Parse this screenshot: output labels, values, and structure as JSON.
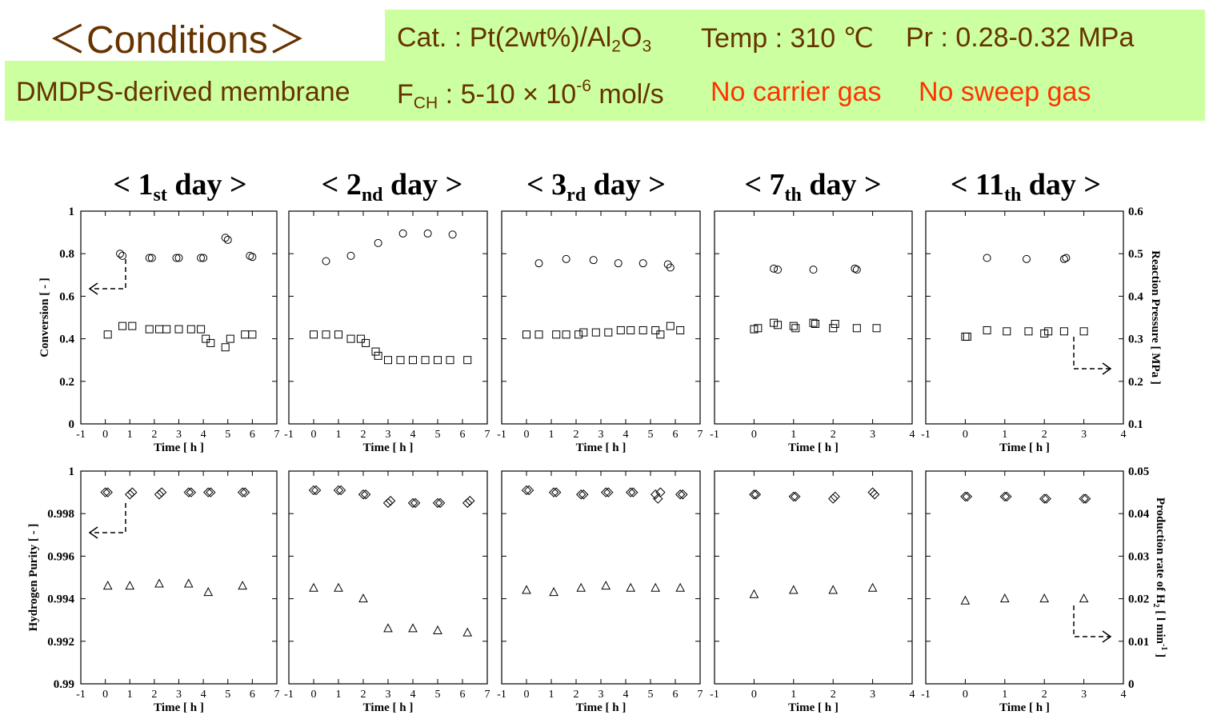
{
  "header": {
    "title": "＜Conditions＞",
    "catalyst": {
      "label": "Cat. : Pt(2wt%)/Al",
      "sub1": "2",
      "mid": "O",
      "sub2": "3"
    },
    "temp": "Temp : 310 ℃",
    "pressure": "Pr : 0.28-0.32 MPa",
    "membrane": "DMDPS-derived membrane",
    "feed": {
      "label": "F",
      "sub": "CH",
      "pre": " : 5-10 × 10",
      "sup": "-6",
      "post": " mol/s"
    },
    "no_carrier": "No carrier gas",
    "no_sweep": "No sweep gas"
  },
  "colors": {
    "header_bg": "#ccffa0",
    "header_text": "#663300",
    "highlight_text": "#ff3300",
    "axis": "#000000"
  },
  "axes": {
    "time_label": "Time [ h ]",
    "top_left_label": "Conversion [ - ]",
    "top_right_label": "Reaction Pressure [ MPa ]",
    "bottom_left_label": "Hydrogen Purity [ - ]",
    "bottom_right_label_main": "Production rate of H",
    "bottom_right_label_sub": "2",
    "bottom_right_label_tail": " [ l min",
    "bottom_right_label_sup": "-1",
    "bottom_right_label_end": " ]",
    "top_left_ticks": [
      "0",
      "0.2",
      "0.4",
      "0.6",
      "0.8",
      "1"
    ],
    "top_right_ticks": [
      "0.1",
      "0.2",
      "0.3",
      "0.4",
      "0.5",
      "0.6"
    ],
    "bottom_left_ticks": [
      "0.99",
      "0.992",
      "0.994",
      "0.996",
      "0.998",
      "1"
    ],
    "bottom_right_ticks": [
      "0",
      "0.01",
      "0.02",
      "0.03",
      "0.04",
      "0.05"
    ]
  },
  "chart_data": [
    {
      "type": "scatter",
      "panel": "top",
      "day_index": 0,
      "title_pre": "< 1",
      "title_sub": "st",
      "title_post": " day >",
      "xlim": [
        -1,
        7
      ],
      "x_ticks": [
        "-1",
        "0",
        "1",
        "2",
        "3",
        "4",
        "5",
        "6",
        "7"
      ],
      "ylim_left": [
        0,
        1
      ],
      "ylim_right": [
        0.1,
        0.6
      ],
      "series": [
        {
          "marker": "circle",
          "axis": "left",
          "x": [
            0.6,
            0.7,
            1.8,
            1.9,
            2.9,
            3.0,
            3.9,
            4.0,
            4.9,
            5.0,
            5.9,
            6.0
          ],
          "y": [
            0.8,
            0.79,
            0.78,
            0.78,
            0.78,
            0.78,
            0.78,
            0.78,
            0.875,
            0.865,
            0.79,
            0.785
          ]
        },
        {
          "marker": "square",
          "axis": "left",
          "x": [
            0.1,
            0.7,
            1.1,
            1.8,
            2.2,
            2.5,
            3.0,
            3.5,
            3.9,
            4.1,
            4.3,
            4.9,
            5.1,
            5.7,
            6.0
          ],
          "y": [
            0.42,
            0.46,
            0.46,
            0.445,
            0.445,
            0.445,
            0.445,
            0.445,
            0.445,
            0.4,
            0.38,
            0.36,
            0.4,
            0.42,
            0.42
          ]
        }
      ]
    },
    {
      "type": "scatter",
      "panel": "top",
      "day_index": 1,
      "title_pre": "< 2",
      "title_sub": "nd",
      "title_post": " day >",
      "xlim": [
        -1,
        7
      ],
      "x_ticks": [
        "-1",
        "0",
        "1",
        "2",
        "3",
        "4",
        "5",
        "6",
        "7"
      ],
      "ylim_left": [
        0,
        1
      ],
      "ylim_right": [
        0.1,
        0.6
      ],
      "series": [
        {
          "marker": "circle",
          "axis": "left",
          "x": [
            0.5,
            1.5,
            2.6,
            3.6,
            4.6,
            5.6
          ],
          "y": [
            0.765,
            0.79,
            0.85,
            0.895,
            0.895,
            0.89
          ]
        },
        {
          "marker": "square",
          "axis": "left",
          "x": [
            0.0,
            0.5,
            1.0,
            1.5,
            1.9,
            2.1,
            2.5,
            2.6,
            3.0,
            3.5,
            4.0,
            4.5,
            5.0,
            5.5,
            6.2
          ],
          "y": [
            0.42,
            0.42,
            0.42,
            0.4,
            0.4,
            0.38,
            0.34,
            0.32,
            0.3,
            0.3,
            0.3,
            0.3,
            0.3,
            0.3,
            0.3
          ]
        }
      ]
    },
    {
      "type": "scatter",
      "panel": "top",
      "day_index": 2,
      "title_pre": "< 3",
      "title_sub": "rd",
      "title_post": " day >",
      "xlim": [
        -1,
        7
      ],
      "x_ticks": [
        "-1",
        "0",
        "1",
        "2",
        "3",
        "4",
        "5",
        "6",
        "7"
      ],
      "ylim_left": [
        0,
        1
      ],
      "ylim_right": [
        0.1,
        0.6
      ],
      "series": [
        {
          "marker": "circle",
          "axis": "left",
          "x": [
            0.5,
            1.6,
            2.7,
            3.7,
            4.7,
            5.7,
            5.8
          ],
          "y": [
            0.755,
            0.775,
            0.77,
            0.755,
            0.755,
            0.75,
            0.735
          ]
        },
        {
          "marker": "square",
          "axis": "left",
          "x": [
            0.0,
            0.5,
            1.2,
            1.6,
            2.1,
            2.3,
            2.8,
            3.3,
            3.8,
            4.2,
            4.7,
            5.2,
            5.4,
            5.8,
            6.2
          ],
          "y": [
            0.42,
            0.42,
            0.42,
            0.42,
            0.42,
            0.43,
            0.43,
            0.43,
            0.44,
            0.44,
            0.44,
            0.44,
            0.42,
            0.46,
            0.44
          ]
        }
      ]
    },
    {
      "type": "scatter",
      "panel": "top",
      "day_index": 3,
      "title_pre": "< 7",
      "title_sub": "th",
      "title_post": " day >",
      "xlim": [
        -1,
        4
      ],
      "x_ticks": [
        "-1",
        "0",
        "1",
        "2",
        "3",
        "4"
      ],
      "ylim_left": [
        0,
        1
      ],
      "ylim_right": [
        0.1,
        0.6
      ],
      "series": [
        {
          "marker": "circle",
          "axis": "left",
          "x": [
            0.5,
            0.6,
            1.5,
            2.55,
            2.6
          ],
          "y": [
            0.73,
            0.725,
            0.725,
            0.73,
            0.725
          ]
        },
        {
          "marker": "square",
          "axis": "left",
          "x": [
            0.0,
            0.1,
            0.5,
            0.6,
            1.0,
            1.05,
            1.5,
            1.55,
            2.0,
            2.05,
            2.6,
            3.1
          ],
          "y": [
            0.445,
            0.45,
            0.475,
            0.465,
            0.46,
            0.45,
            0.475,
            0.47,
            0.45,
            0.47,
            0.45,
            0.45
          ]
        }
      ]
    },
    {
      "type": "scatter",
      "panel": "top",
      "day_index": 4,
      "title_pre": "< 11",
      "title_sub": "th",
      "title_post": " day >",
      "xlim": [
        -1,
        4
      ],
      "x_ticks": [
        "-1",
        "0",
        "1",
        "2",
        "3",
        "4"
      ],
      "ylim_left": [
        0,
        1
      ],
      "ylim_right": [
        0.1,
        0.6
      ],
      "series": [
        {
          "marker": "circle",
          "axis": "left",
          "x": [
            0.55,
            1.55,
            2.5,
            2.55
          ],
          "y": [
            0.78,
            0.775,
            0.775,
            0.78
          ]
        },
        {
          "marker": "square",
          "axis": "left",
          "x": [
            0.0,
            0.05,
            0.55,
            1.05,
            1.6,
            2.0,
            2.1,
            2.5,
            3.0
          ],
          "y": [
            0.41,
            0.41,
            0.44,
            0.435,
            0.435,
            0.425,
            0.435,
            0.435,
            0.435
          ]
        }
      ]
    },
    {
      "type": "scatter",
      "panel": "bottom",
      "day_index": 0,
      "xlim": [
        -1,
        7
      ],
      "x_ticks": [
        "-1",
        "0",
        "1",
        "2",
        "3",
        "4",
        "5",
        "6",
        "7"
      ],
      "ylim_left": [
        0.99,
        1
      ],
      "ylim_right": [
        0,
        0.05
      ],
      "series": [
        {
          "marker": "diamond",
          "axis": "left",
          "x": [
            0.0,
            0.1,
            1.0,
            1.1,
            2.2,
            2.3,
            3.4,
            3.5,
            4.2,
            4.3,
            5.6,
            5.7
          ],
          "y": [
            0.999,
            0.999,
            0.9989,
            0.999,
            0.9989,
            0.999,
            0.999,
            0.999,
            0.999,
            0.999,
            0.999,
            0.999
          ]
        },
        {
          "marker": "triangle",
          "axis": "left",
          "x": [
            0.1,
            1.0,
            2.2,
            3.4,
            4.2,
            5.6
          ],
          "y": [
            0.9946,
            0.9946,
            0.9947,
            0.9947,
            0.9943,
            0.9946
          ]
        }
      ]
    },
    {
      "type": "scatter",
      "panel": "bottom",
      "day_index": 1,
      "xlim": [
        -1,
        7
      ],
      "x_ticks": [
        "-1",
        "0",
        "1",
        "2",
        "3",
        "4",
        "5",
        "6",
        "7"
      ],
      "ylim_left": [
        0.99,
        1
      ],
      "ylim_right": [
        0,
        0.05
      ],
      "series": [
        {
          "marker": "diamond",
          "axis": "left",
          "x": [
            0.0,
            0.1,
            1.0,
            1.1,
            2.0,
            2.1,
            3.0,
            3.1,
            4.0,
            4.1,
            5.0,
            5.1,
            6.2,
            6.3
          ],
          "y": [
            0.9991,
            0.9991,
            0.9991,
            0.9991,
            0.9989,
            0.9989,
            0.9985,
            0.9986,
            0.9985,
            0.9985,
            0.9985,
            0.9985,
            0.9985,
            0.9986
          ]
        },
        {
          "marker": "triangle",
          "axis": "left",
          "x": [
            0.0,
            1.0,
            2.0,
            3.0,
            4.0,
            5.0,
            6.2
          ],
          "y": [
            0.9945,
            0.9945,
            0.994,
            0.9926,
            0.9926,
            0.9925,
            0.9924
          ]
        }
      ]
    },
    {
      "type": "scatter",
      "panel": "bottom",
      "day_index": 2,
      "xlim": [
        -1,
        7
      ],
      "x_ticks": [
        "-1",
        "0",
        "1",
        "2",
        "3",
        "4",
        "5",
        "6",
        "7"
      ],
      "ylim_left": [
        0.99,
        1
      ],
      "ylim_right": [
        0,
        0.05
      ],
      "series": [
        {
          "marker": "diamond",
          "axis": "left",
          "x": [
            0.0,
            0.1,
            1.1,
            1.2,
            2.2,
            2.3,
            3.2,
            3.3,
            4.2,
            4.3,
            5.2,
            5.3,
            5.4,
            6.2,
            6.3
          ],
          "y": [
            0.9991,
            0.9991,
            0.999,
            0.999,
            0.9989,
            0.9989,
            0.999,
            0.999,
            0.999,
            0.999,
            0.9989,
            0.9987,
            0.999,
            0.9989,
            0.9989
          ]
        },
        {
          "marker": "triangle",
          "axis": "left",
          "x": [
            0.0,
            1.1,
            2.2,
            3.2,
            4.2,
            5.2,
            6.2
          ],
          "y": [
            0.9944,
            0.9943,
            0.9945,
            0.9946,
            0.9945,
            0.9945,
            0.9945
          ]
        }
      ]
    },
    {
      "type": "scatter",
      "panel": "bottom",
      "day_index": 3,
      "xlim": [
        -1,
        4
      ],
      "x_ticks": [
        "-1",
        "0",
        "1",
        "2",
        "3",
        "4"
      ],
      "ylim_left": [
        0.99,
        1
      ],
      "ylim_right": [
        0,
        0.05
      ],
      "series": [
        {
          "marker": "diamond",
          "axis": "left",
          "x": [
            0.0,
            0.05,
            1.0,
            1.05,
            2.0,
            2.05,
            3.0,
            3.05
          ],
          "y": [
            0.9989,
            0.9989,
            0.9988,
            0.9988,
            0.9987,
            0.9988,
            0.999,
            0.9989
          ]
        },
        {
          "marker": "triangle",
          "axis": "left",
          "x": [
            0.0,
            1.0,
            2.0,
            3.0
          ],
          "y": [
            0.9942,
            0.9944,
            0.9944,
            0.9945
          ]
        }
      ]
    },
    {
      "type": "scatter",
      "panel": "bottom",
      "day_index": 4,
      "xlim": [
        -1,
        4
      ],
      "x_ticks": [
        "-1",
        "0",
        "1",
        "2",
        "3",
        "4"
      ],
      "ylim_left": [
        0.99,
        1
      ],
      "ylim_right": [
        0,
        0.05
      ],
      "series": [
        {
          "marker": "diamond",
          "axis": "left",
          "x": [
            0.0,
            0.05,
            1.0,
            1.05,
            2.0,
            2.05,
            3.0,
            3.05
          ],
          "y": [
            0.9988,
            0.9988,
            0.9988,
            0.9988,
            0.9987,
            0.9987,
            0.9987,
            0.9987
          ]
        },
        {
          "marker": "triangle",
          "axis": "left",
          "x": [
            0.0,
            1.0,
            2.0,
            3.0
          ],
          "y": [
            0.9939,
            0.994,
            0.994,
            0.994
          ]
        }
      ]
    }
  ]
}
